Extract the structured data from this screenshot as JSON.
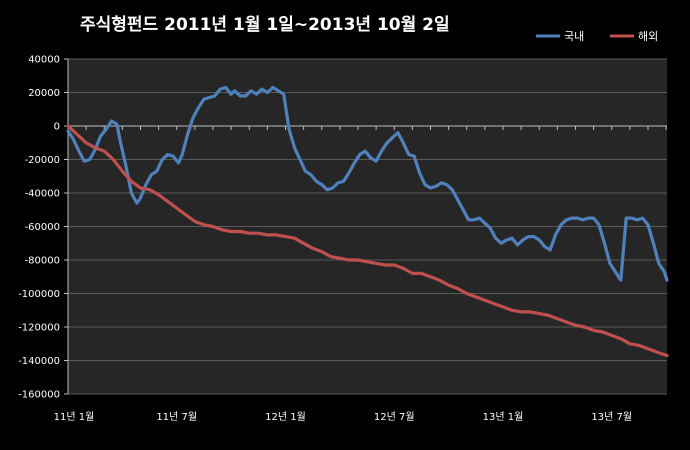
{
  "chart_data": {
    "type": "line",
    "title": "주식형펀드    2011년 1월 1일~2013년 10월 2일",
    "xlabel": "",
    "ylabel": "",
    "ylim": [
      -160000,
      40000
    ],
    "yticks": [
      40000,
      20000,
      0,
      -20000,
      -40000,
      -60000,
      -80000,
      -100000,
      -120000,
      -140000,
      -160000
    ],
    "xlim": [
      0,
      33.05
    ],
    "xtick_labels": [
      {
        "label": "11년 1월",
        "x": 0
      },
      {
        "label": "11년 7월",
        "x": 6
      },
      {
        "label": "12년 1월",
        "x": 12
      },
      {
        "label": "12년 7월",
        "x": 18
      },
      {
        "label": "13년 1월",
        "x": 24
      },
      {
        "label": "13년 7월",
        "x": 30
      }
    ],
    "grid": true,
    "legend": "top-right",
    "series": [
      {
        "name": "국내",
        "color": "#4f81bd",
        "x": [
          0,
          0.3,
          0.6,
          0.9,
          1.2,
          1.5,
          1.8,
          2.1,
          2.4,
          2.7,
          2.9,
          3.2,
          3.5,
          3.8,
          4.0,
          4.3,
          4.6,
          4.9,
          5.2,
          5.5,
          5.8,
          6.1,
          6.3,
          6.6,
          6.9,
          7.2,
          7.5,
          7.8,
          8.1,
          8.4,
          8.7,
          9.0,
          9.2,
          9.5,
          9.8,
          10.1,
          10.4,
          10.7,
          11.0,
          11.3,
          11.6,
          11.9,
          12.2,
          12.5,
          12.8,
          13.1,
          13.4,
          13.7,
          14.0,
          14.3,
          14.6,
          14.9,
          15.2,
          15.5,
          15.8,
          16.1,
          16.4,
          16.7,
          17.0,
          17.3,
          17.6,
          17.9,
          18.2,
          18.5,
          18.8,
          19.1,
          19.4,
          19.7,
          20.0,
          20.3,
          20.6,
          20.9,
          21.2,
          21.5,
          21.8,
          22.1,
          22.4,
          22.7,
          23.0,
          23.3,
          23.6,
          23.9,
          24.2,
          24.5,
          24.8,
          25.1,
          25.4,
          25.7,
          26.0,
          26.3,
          26.6,
          26.9,
          27.2,
          27.5,
          27.8,
          28.1,
          28.4,
          28.7,
          29.0,
          29.3,
          29.6,
          29.9,
          30.2,
          30.5,
          30.8,
          31.1,
          31.4,
          31.7,
          32.0,
          32.3,
          32.6,
          32.9,
          33.05
        ],
        "values": [
          -3000,
          -8000,
          -15000,
          -21000,
          -20000,
          -14000,
          -6000,
          -2000,
          3000,
          1000,
          -10000,
          -24000,
          -40000,
          -46000,
          -43000,
          -35000,
          -29000,
          -27000,
          -20000,
          -17000,
          -18000,
          -22000,
          -17000,
          -5000,
          5000,
          11000,
          16000,
          17000,
          18000,
          22000,
          23000,
          19000,
          21000,
          18000,
          18000,
          21000,
          19000,
          22000,
          20000,
          23000,
          21000,
          19000,
          -2000,
          -13000,
          -20000,
          -27000,
          -29000,
          -33000,
          -35000,
          -38000,
          -37000,
          -34000,
          -33000,
          -28000,
          -22000,
          -17000,
          -15000,
          -19000,
          -21000,
          -15000,
          -10000,
          -7000,
          -4000,
          -10000,
          -17000,
          -18000,
          -28000,
          -35000,
          -37000,
          -36000,
          -34000,
          -35000,
          -38000,
          -44000,
          -50000,
          -56000,
          -56000,
          -55000,
          -58000,
          -61000,
          -67000,
          -70000,
          -68000,
          -67000,
          -71000,
          -68000,
          -66000,
          -66000,
          -68000,
          -72000,
          -74000,
          -65000,
          -59000,
          -56000,
          -55000,
          -55000,
          -56000,
          -55000,
          -55000,
          -59000,
          -70000,
          -82000,
          -87000,
          -92000,
          -55000,
          -55000,
          -56000,
          -55000,
          -59000,
          -70000,
          -82000,
          -87000,
          -92000
        ]
      },
      {
        "name": "해외",
        "color": "#c0504d",
        "x": [
          0,
          0.5,
          1.0,
          1.5,
          2.0,
          2.5,
          3.0,
          3.5,
          4.0,
          4.5,
          5.0,
          5.5,
          6.0,
          6.5,
          7.0,
          7.5,
          8.0,
          8.5,
          9.0,
          9.5,
          10.0,
          10.5,
          11.0,
          11.5,
          12.0,
          12.5,
          13.0,
          13.5,
          14.0,
          14.5,
          15.0,
          15.5,
          16.0,
          16.5,
          17.0,
          17.5,
          18.0,
          18.5,
          19.0,
          19.5,
          20.0,
          20.5,
          21.0,
          21.5,
          22.0,
          22.5,
          23.0,
          23.5,
          24.0,
          24.5,
          25.0,
          25.5,
          26.0,
          26.5,
          27.0,
          27.5,
          28.0,
          28.5,
          29.0,
          29.5,
          30.0,
          30.5,
          31.0,
          31.5,
          32.0,
          32.5,
          33.05
        ],
        "values": [
          0,
          -5000,
          -10000,
          -13000,
          -15000,
          -20000,
          -27000,
          -33000,
          -37000,
          -38000,
          -41000,
          -45000,
          -49000,
          -53000,
          -57000,
          -59000,
          -60000,
          -62000,
          -63000,
          -63000,
          -64000,
          -64000,
          -65000,
          -65000,
          -66000,
          -67000,
          -70000,
          -73000,
          -75000,
          -78000,
          -79000,
          -80000,
          -80000,
          -81000,
          -82000,
          -83000,
          -83000,
          -85000,
          -88000,
          -88000,
          -90000,
          -92000,
          -95000,
          -97000,
          -100000,
          -102000,
          -104000,
          -106000,
          -108000,
          -110000,
          -111000,
          -111000,
          -112000,
          -113000,
          -115000,
          -117000,
          -119000,
          -120000,
          -122000,
          -123000,
          -125000,
          -127000,
          -130000,
          -131000,
          -133000,
          -135000,
          -137000
        ]
      }
    ]
  }
}
